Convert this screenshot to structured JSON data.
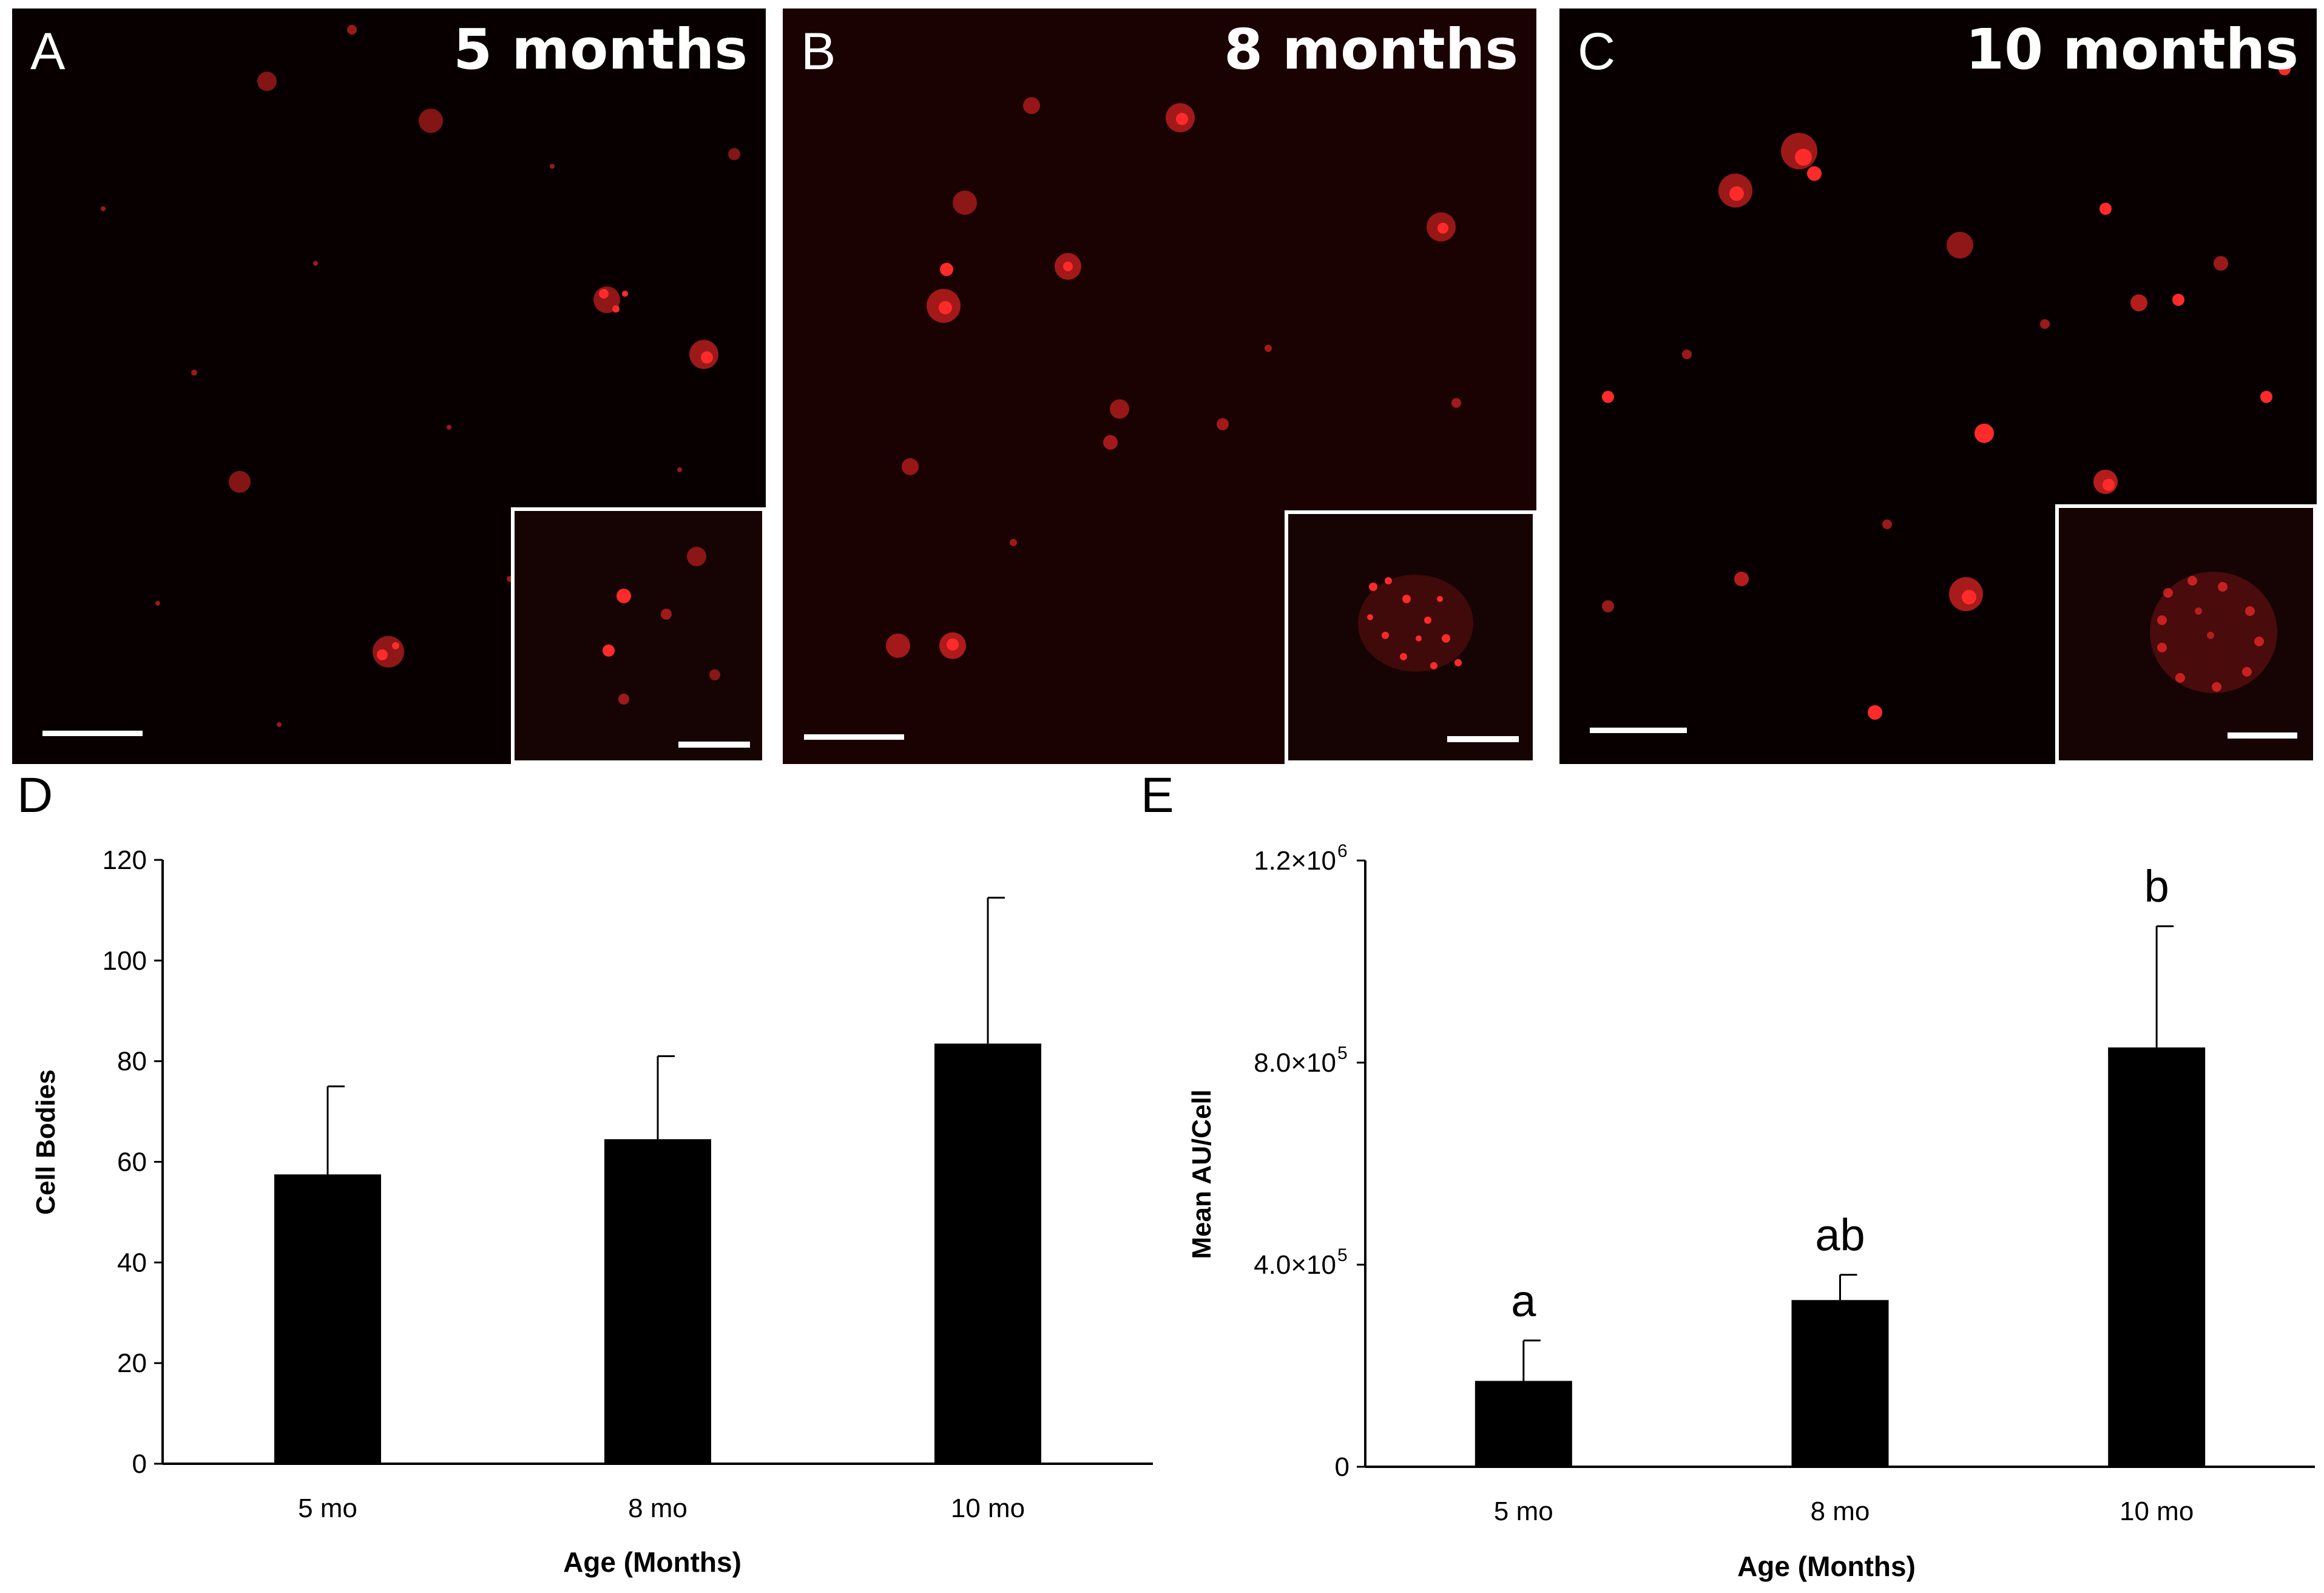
{
  "panels": [
    {
      "letter": "A",
      "title": "5 months"
    },
    {
      "letter": "B",
      "title": "8 months"
    },
    {
      "letter": "C",
      "title": "10 months"
    }
  ],
  "colors": {
    "signal": "#ff1a1a",
    "background": "#080000",
    "bar": "#000000"
  },
  "chart_data": [
    {
      "panel": "D",
      "type": "bar",
      "categories": [
        "5 mo",
        "8 mo",
        "10 mo"
      ],
      "values": [
        57.5,
        64.5,
        83.5
      ],
      "errors": [
        17.5,
        16.5,
        29.0
      ],
      "xlabel": "Age (Months)",
      "ylabel": "Cell Bodies",
      "ylim": [
        0,
        120
      ],
      "yticks": [
        0,
        20,
        40,
        60,
        80,
        100,
        120
      ],
      "ytick_labels": [
        "0",
        "20",
        "40",
        "60",
        "80",
        "100",
        "120"
      ],
      "annotations": []
    },
    {
      "panel": "E",
      "type": "bar",
      "categories": [
        "5 mo",
        "8 mo",
        "10 mo"
      ],
      "values": [
        170000,
        330000,
        830000
      ],
      "errors": [
        80000,
        50000,
        240000
      ],
      "xlabel": "Age (Months)",
      "ylabel": "Mean AU/Cell",
      "ylim": [
        0,
        1200000
      ],
      "yticks": [
        0,
        400000,
        800000,
        1200000
      ],
      "ytick_labels": [
        "0",
        "4.0×10",
        "8.0×10",
        "1.2×10"
      ],
      "ytick_exponents": [
        "",
        "5",
        "5",
        "6"
      ],
      "annotations": [
        "a",
        "ab",
        "b"
      ]
    }
  ]
}
